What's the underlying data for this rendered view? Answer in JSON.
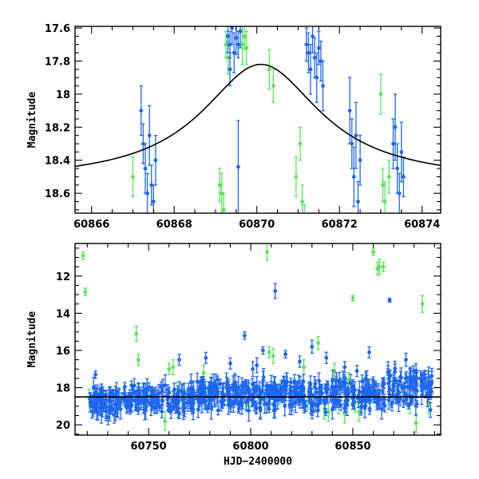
{
  "chart_data": [
    {
      "type": "scatter",
      "title": "",
      "xlabel": "",
      "ylabel": "Magnitude",
      "xlim": [
        60865.6,
        60874.45
      ],
      "ylim": [
        18.72,
        17.59
      ],
      "y_inverted": true,
      "xticks": [
        60866,
        60868,
        60870,
        60872,
        60874
      ],
      "yticks": [
        17.6,
        17.8,
        18,
        18.2,
        18.4,
        18.6
      ],
      "colors": {
        "green": "#55e655",
        "blue": "#1f66f0",
        "model": "#000000"
      },
      "model_curve": {
        "shape": "lorentzian",
        "x0": 60870.1,
        "peak": 17.82,
        "base": 18.53,
        "width": 1.75
      },
      "series": [
        {
          "name": "",
          "color": "#55e655",
          "x": [
            60867.0,
            60869.1,
            60869.15,
            60869.2,
            60869.25,
            60869.3,
            60869.65,
            60869.7,
            60869.75,
            60870.3,
            60870.4,
            60870.95,
            60871.05,
            60871.1,
            60871.15,
            60873.0,
            60873.05,
            60873.1,
            60873.2
          ],
          "y": [
            18.5,
            18.55,
            18.6,
            18.7,
            17.7,
            17.78,
            17.7,
            17.65,
            17.72,
            17.85,
            17.95,
            18.5,
            18.3,
            18.65,
            18.75,
            18.0,
            18.55,
            18.65,
            18.5
          ],
          "err": [
            0.12,
            0.1,
            0.12,
            0.1,
            0.08,
            0.1,
            0.12,
            0.08,
            0.1,
            0.12,
            0.1,
            0.12,
            0.1,
            0.1,
            0.08,
            0.12,
            0.1,
            0.12,
            0.1
          ]
        },
        {
          "name": "",
          "color": "#1f66f0",
          "x": [
            60867.2,
            60867.25,
            60867.3,
            60867.35,
            60867.4,
            60867.45,
            60867.5,
            60867.55,
            60869.3,
            60869.35,
            60869.4,
            60869.45,
            60869.5,
            60869.55,
            60869.6,
            60869.55,
            60869.35,
            60871.2,
            60871.25,
            60871.3,
            60871.35,
            60871.4,
            60871.45,
            60871.5,
            60871.55,
            60871.6,
            60872.25,
            60872.3,
            60872.35,
            60872.4,
            60872.45,
            60872.5,
            60873.3,
            60873.35,
            60873.4,
            60873.45,
            60873.5,
            60873.55
          ],
          "y": [
            18.1,
            18.3,
            18.45,
            18.6,
            18.25,
            18.55,
            18.65,
            18.4,
            17.65,
            17.7,
            17.6,
            17.75,
            17.66,
            17.7,
            17.62,
            18.44,
            17.85,
            17.7,
            17.75,
            17.85,
            17.65,
            17.78,
            17.9,
            17.72,
            17.8,
            17.95,
            18.1,
            18.3,
            18.5,
            18.25,
            18.65,
            18.4,
            18.3,
            18.2,
            18.45,
            18.6,
            18.35,
            18.5
          ],
          "err": [
            0.15,
            0.12,
            0.15,
            0.12,
            0.18,
            0.12,
            0.1,
            0.15,
            0.1,
            0.08,
            0.1,
            0.12,
            0.1,
            0.08,
            0.1,
            0.28,
            0.1,
            0.1,
            0.12,
            0.15,
            0.1,
            0.12,
            0.15,
            0.1,
            0.12,
            0.15,
            0.2,
            0.15,
            0.18,
            0.2,
            0.12,
            0.15,
            0.15,
            0.2,
            0.15,
            0.12,
            0.18,
            0.12
          ]
        }
      ]
    },
    {
      "type": "scatter",
      "title": "",
      "xlabel": "HJD−2400000",
      "ylabel": "Magnitude",
      "xlim": [
        60714,
        60893
      ],
      "ylim": [
        20.55,
        10.25
      ],
      "y_inverted": true,
      "xticks": [
        60750,
        60800,
        60850
      ],
      "yticks": [
        12,
        14,
        16,
        18,
        20
      ],
      "colors": {
        "green": "#55e655",
        "blue": "#1f66f0",
        "model": "#000000"
      },
      "baseline_mag": 18.5,
      "series": [
        {
          "name": "",
          "color": "#55e655",
          "x": [
            60718,
            60719,
            60721,
            60724,
            60727,
            60744,
            60745,
            60758,
            60760,
            60762,
            60764,
            60768,
            60772,
            60775,
            60777,
            60779,
            60781,
            60798,
            60808,
            60809,
            60811,
            60814,
            60826,
            60828,
            60833,
            60836,
            60838,
            60841,
            60843,
            60846,
            60848,
            60850,
            60851,
            60853,
            60860,
            60862,
            60863,
            60865,
            60878,
            60881,
            60884,
            60887
          ],
          "y": [
            10.9,
            12.85,
            18.6,
            18.8,
            18.3,
            15.1,
            16.5,
            19.8,
            17.0,
            16.9,
            18.2,
            18.6,
            18.7,
            18.0,
            17.2,
            18.5,
            17.8,
            18.9,
            10.7,
            16.1,
            16.3,
            18.4,
            16.9,
            18.7,
            15.6,
            19.2,
            19.3,
            17.1,
            18.9,
            19.4,
            17.6,
            13.2,
            18.8,
            19.3,
            10.7,
            11.6,
            11.5,
            11.5,
            18.9,
            19.9,
            13.5,
            18.9
          ],
          "err": [
            0.2,
            0.2,
            0.5,
            0.5,
            0.5,
            0.4,
            0.3,
            0.5,
            0.3,
            0.4,
            0.5,
            0.5,
            0.5,
            0.4,
            0.4,
            0.5,
            0.5,
            0.4,
            0.45,
            0.3,
            0.4,
            0.5,
            0.4,
            0.5,
            0.35,
            0.5,
            0.5,
            0.4,
            0.5,
            0.5,
            0.4,
            0.15,
            0.5,
            0.5,
            0.2,
            0.35,
            0.4,
            0.25,
            0.5,
            0.5,
            0.45,
            0.5
          ]
        },
        {
          "name": "",
          "color": "#1f66f0",
          "x": [
            60724,
            60757,
            60765,
            60778,
            60790,
            60797,
            60801,
            60803,
            60806,
            60812,
            60815,
            60817,
            60824,
            60830,
            60837,
            60842,
            60846,
            60852,
            60858,
            60868,
            60876,
            60888
          ],
          "y": [
            17.3,
            17.9,
            16.5,
            16.4,
            16.7,
            15.2,
            17.0,
            16.8,
            16.0,
            12.8,
            18.0,
            16.2,
            16.6,
            15.8,
            16.4,
            17.6,
            16.9,
            17.1,
            16.1,
            13.3,
            16.5,
            19.2
          ],
          "err": [
            0.2,
            0.35,
            0.3,
            0.3,
            0.3,
            0.2,
            0.4,
            0.4,
            0.2,
            0.4,
            0.4,
            0.2,
            0.3,
            0.35,
            0.3,
            0.4,
            0.3,
            0.3,
            0.3,
            0.1,
            0.35,
            0.4
          ],
          "dense_bands": [
            {
              "x0": 60721,
              "x1": 60737,
              "center": 18.8,
              "spread": 0.85
            },
            {
              "x0": 60738,
              "x1": 60757,
              "center": 18.6,
              "spread": 0.8
            },
            {
              "x0": 60758,
              "x1": 60772,
              "center": 18.6,
              "spread": 0.95
            },
            {
              "x0": 60773,
              "x1": 60787,
              "center": 18.4,
              "spread": 0.9
            },
            {
              "x0": 60788,
              "x1": 60803,
              "center": 18.4,
              "spread": 0.95
            },
            {
              "x0": 60804,
              "x1": 60818,
              "center": 18.3,
              "spread": 1.05
            },
            {
              "x0": 60819,
              "x1": 60835,
              "center": 18.4,
              "spread": 1.0
            },
            {
              "x0": 60836,
              "x1": 60851,
              "center": 18.4,
              "spread": 0.95
            },
            {
              "x0": 60852,
              "x1": 60866,
              "center": 18.3,
              "spread": 1.0
            },
            {
              "x0": 60867,
              "x1": 60882,
              "center": 18.0,
              "spread": 1.25
            },
            {
              "x0": 60883,
              "x1": 60889,
              "center": 17.9,
              "spread": 0.7
            }
          ]
        }
      ]
    }
  ]
}
